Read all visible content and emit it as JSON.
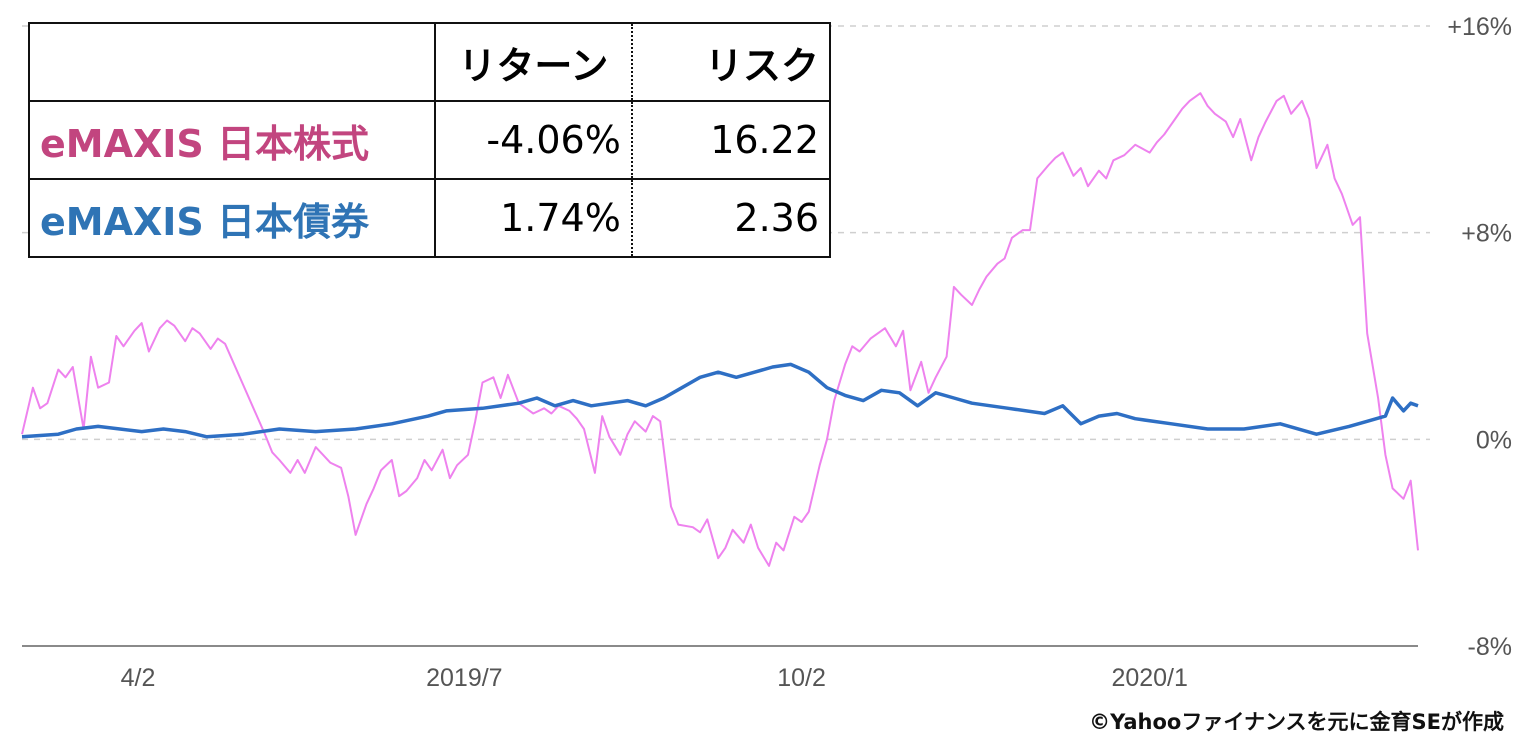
{
  "chart_data": {
    "type": "line",
    "title": "",
    "xlabel": "",
    "ylabel": "",
    "x_range": [
      "2019-03-01",
      "2020-03-20"
    ],
    "ylim": [
      -8,
      16
    ],
    "y_ticks": [
      "+16%",
      "+8%",
      "0%",
      "-8%"
    ],
    "y_tick_values": [
      16,
      8,
      0,
      -8
    ],
    "x_ticks": [
      {
        "label": "4/2",
        "date": "2019-04-02"
      },
      {
        "label": "2019/7",
        "date": "2019-07-01"
      },
      {
        "label": "10/2",
        "date": "2019-10-02"
      },
      {
        "label": "2020/1",
        "date": "2020-01-06"
      }
    ],
    "grid": "horizontal dashed",
    "series": [
      {
        "name": "eMAXIS 日本株式",
        "color": "#ee82ee",
        "points": [
          [
            "2019-03-01",
            0.2
          ],
          [
            "2019-03-04",
            2.0
          ],
          [
            "2019-03-06",
            1.2
          ],
          [
            "2019-03-08",
            1.4
          ],
          [
            "2019-03-11",
            2.7
          ],
          [
            "2019-03-13",
            2.4
          ],
          [
            "2019-03-15",
            2.8
          ],
          [
            "2019-03-18",
            0.4
          ],
          [
            "2019-03-20",
            3.2
          ],
          [
            "2019-03-22",
            2.0
          ],
          [
            "2019-03-25",
            2.2
          ],
          [
            "2019-03-27",
            4.0
          ],
          [
            "2019-03-29",
            3.6
          ],
          [
            "2019-04-01",
            4.2
          ],
          [
            "2019-04-03",
            4.5
          ],
          [
            "2019-04-05",
            3.4
          ],
          [
            "2019-04-08",
            4.3
          ],
          [
            "2019-04-10",
            4.6
          ],
          [
            "2019-04-12",
            4.4
          ],
          [
            "2019-04-15",
            3.8
          ],
          [
            "2019-04-17",
            4.3
          ],
          [
            "2019-04-19",
            4.1
          ],
          [
            "2019-04-22",
            3.5
          ],
          [
            "2019-04-24",
            3.9
          ],
          [
            "2019-04-26",
            3.7
          ],
          [
            "2019-05-07",
            0.2
          ],
          [
            "2019-05-09",
            -0.5
          ],
          [
            "2019-05-11",
            -0.8
          ],
          [
            "2019-05-14",
            -1.3
          ],
          [
            "2019-05-16",
            -0.8
          ],
          [
            "2019-05-18",
            -1.3
          ],
          [
            "2019-05-21",
            -0.3
          ],
          [
            "2019-05-23",
            -0.6
          ],
          [
            "2019-05-25",
            -0.9
          ],
          [
            "2019-05-28",
            -1.1
          ],
          [
            "2019-05-30",
            -2.2
          ],
          [
            "2019-06-01",
            -3.7
          ],
          [
            "2019-06-04",
            -2.5
          ],
          [
            "2019-06-06",
            -1.9
          ],
          [
            "2019-06-08",
            -1.2
          ],
          [
            "2019-06-11",
            -0.8
          ],
          [
            "2019-06-13",
            -2.2
          ],
          [
            "2019-06-15",
            -2.0
          ],
          [
            "2019-06-18",
            -1.5
          ],
          [
            "2019-06-20",
            -0.8
          ],
          [
            "2019-06-22",
            -1.2
          ],
          [
            "2019-06-25",
            -0.4
          ],
          [
            "2019-06-27",
            -1.5
          ],
          [
            "2019-06-29",
            -1.0
          ],
          [
            "2019-07-02",
            -0.6
          ],
          [
            "2019-07-04",
            0.7
          ],
          [
            "2019-07-06",
            2.2
          ],
          [
            "2019-07-09",
            2.4
          ],
          [
            "2019-07-11",
            1.6
          ],
          [
            "2019-07-13",
            2.5
          ],
          [
            "2019-07-16",
            1.4
          ],
          [
            "2019-07-18",
            1.2
          ],
          [
            "2019-07-20",
            1.0
          ],
          [
            "2019-07-23",
            1.2
          ],
          [
            "2019-07-25",
            1.0
          ],
          [
            "2019-07-27",
            1.3
          ],
          [
            "2019-07-30",
            1.1
          ],
          [
            "2019-08-01",
            0.8
          ],
          [
            "2019-08-03",
            0.4
          ],
          [
            "2019-08-06",
            -1.3
          ],
          [
            "2019-08-08",
            0.9
          ],
          [
            "2019-08-10",
            0.1
          ],
          [
            "2019-08-13",
            -0.6
          ],
          [
            "2019-08-15",
            0.2
          ],
          [
            "2019-08-17",
            0.7
          ],
          [
            "2019-08-20",
            0.3
          ],
          [
            "2019-08-22",
            0.9
          ],
          [
            "2019-08-24",
            0.7
          ],
          [
            "2019-08-27",
            -2.6
          ],
          [
            "2019-08-29",
            -3.3
          ],
          [
            "2019-09-02",
            -3.4
          ],
          [
            "2019-09-04",
            -3.6
          ],
          [
            "2019-09-06",
            -3.1
          ],
          [
            "2019-09-09",
            -4.6
          ],
          [
            "2019-09-11",
            -4.2
          ],
          [
            "2019-09-13",
            -3.5
          ],
          [
            "2019-09-16",
            -4.0
          ],
          [
            "2019-09-18",
            -3.3
          ],
          [
            "2019-09-20",
            -4.2
          ],
          [
            "2019-09-23",
            -4.9
          ],
          [
            "2019-09-25",
            -4.0
          ],
          [
            "2019-09-27",
            -4.3
          ],
          [
            "2019-09-30",
            -3.0
          ],
          [
            "2019-10-02",
            -3.2
          ],
          [
            "2019-10-04",
            -2.8
          ],
          [
            "2019-10-07",
            -1.0
          ],
          [
            "2019-10-09",
            0.0
          ],
          [
            "2019-10-11",
            1.5
          ],
          [
            "2019-10-14",
            2.9
          ],
          [
            "2019-10-16",
            3.6
          ],
          [
            "2019-10-18",
            3.4
          ],
          [
            "2019-10-21",
            3.9
          ],
          [
            "2019-10-23",
            4.1
          ],
          [
            "2019-10-25",
            4.3
          ],
          [
            "2019-10-28",
            3.6
          ],
          [
            "2019-10-30",
            4.2
          ],
          [
            "2019-11-01",
            1.9
          ],
          [
            "2019-11-04",
            3.0
          ],
          [
            "2019-11-06",
            1.8
          ],
          [
            "2019-11-08",
            2.4
          ],
          [
            "2019-11-11",
            3.2
          ],
          [
            "2019-11-13",
            5.9
          ],
          [
            "2019-11-15",
            5.6
          ],
          [
            "2019-11-18",
            5.2
          ],
          [
            "2019-11-20",
            5.8
          ],
          [
            "2019-11-22",
            6.3
          ],
          [
            "2019-11-25",
            6.8
          ],
          [
            "2019-11-27",
            7.0
          ],
          [
            "2019-11-29",
            7.8
          ],
          [
            "2019-12-02",
            8.1
          ],
          [
            "2019-12-04",
            8.1
          ],
          [
            "2019-12-06",
            10.1
          ],
          [
            "2019-12-09",
            10.6
          ],
          [
            "2019-12-11",
            10.9
          ],
          [
            "2019-12-13",
            11.1
          ],
          [
            "2019-12-16",
            10.2
          ],
          [
            "2019-12-18",
            10.5
          ],
          [
            "2019-12-20",
            9.8
          ],
          [
            "2019-12-23",
            10.4
          ],
          [
            "2019-12-25",
            10.1
          ],
          [
            "2019-12-27",
            10.8
          ],
          [
            "2019-12-30",
            11.0
          ],
          [
            "2020-01-02",
            11.4
          ],
          [
            "2020-01-06",
            11.1
          ],
          [
            "2020-01-08",
            11.5
          ],
          [
            "2020-01-10",
            11.8
          ],
          [
            "2020-01-13",
            12.4
          ],
          [
            "2020-01-15",
            12.8
          ],
          [
            "2020-01-17",
            13.1
          ],
          [
            "2020-01-20",
            13.4
          ],
          [
            "2020-01-22",
            12.9
          ],
          [
            "2020-01-24",
            12.6
          ],
          [
            "2020-01-27",
            12.3
          ],
          [
            "2020-01-29",
            11.7
          ],
          [
            "2020-01-31",
            12.4
          ],
          [
            "2020-02-03",
            10.8
          ],
          [
            "2020-02-05",
            11.7
          ],
          [
            "2020-02-07",
            12.3
          ],
          [
            "2020-02-10",
            13.1
          ],
          [
            "2020-02-12",
            13.3
          ],
          [
            "2020-02-14",
            12.6
          ],
          [
            "2020-02-17",
            13.1
          ],
          [
            "2020-02-19",
            12.4
          ],
          [
            "2020-02-21",
            10.5
          ],
          [
            "2020-02-24",
            11.4
          ],
          [
            "2020-02-26",
            10.1
          ],
          [
            "2020-02-28",
            9.5
          ],
          [
            "2020-03-02",
            8.3
          ],
          [
            "2020-03-04",
            8.6
          ],
          [
            "2020-03-06",
            4.1
          ],
          [
            "2020-03-09",
            1.6
          ],
          [
            "2020-03-11",
            -0.6
          ],
          [
            "2020-03-13",
            -1.9
          ],
          [
            "2020-03-16",
            -2.3
          ],
          [
            "2020-03-18",
            -1.6
          ],
          [
            "2020-03-20",
            -4.3
          ]
        ]
      },
      {
        "name": "eMAXIS 日本債券",
        "color": "#2e6fc4",
        "points": [
          [
            "2019-03-01",
            0.1
          ],
          [
            "2019-03-11",
            0.2
          ],
          [
            "2019-03-16",
            0.4
          ],
          [
            "2019-03-22",
            0.5
          ],
          [
            "2019-03-28",
            0.4
          ],
          [
            "2019-04-03",
            0.3
          ],
          [
            "2019-04-09",
            0.4
          ],
          [
            "2019-04-15",
            0.3
          ],
          [
            "2019-04-21",
            0.1
          ],
          [
            "2019-05-01",
            0.2
          ],
          [
            "2019-05-11",
            0.4
          ],
          [
            "2019-05-21",
            0.3
          ],
          [
            "2019-06-01",
            0.4
          ],
          [
            "2019-06-11",
            0.6
          ],
          [
            "2019-06-21",
            0.9
          ],
          [
            "2019-06-26",
            1.1
          ],
          [
            "2019-07-06",
            1.2
          ],
          [
            "2019-07-16",
            1.4
          ],
          [
            "2019-07-21",
            1.6
          ],
          [
            "2019-07-26",
            1.3
          ],
          [
            "2019-07-31",
            1.5
          ],
          [
            "2019-08-05",
            1.3
          ],
          [
            "2019-08-10",
            1.4
          ],
          [
            "2019-08-15",
            1.5
          ],
          [
            "2019-08-20",
            1.3
          ],
          [
            "2019-08-25",
            1.6
          ],
          [
            "2019-08-30",
            2.0
          ],
          [
            "2019-09-04",
            2.4
          ],
          [
            "2019-09-09",
            2.6
          ],
          [
            "2019-09-14",
            2.4
          ],
          [
            "2019-09-19",
            2.6
          ],
          [
            "2019-09-24",
            2.8
          ],
          [
            "2019-09-29",
            2.9
          ],
          [
            "2019-10-04",
            2.6
          ],
          [
            "2019-10-09",
            2.0
          ],
          [
            "2019-10-14",
            1.7
          ],
          [
            "2019-10-19",
            1.5
          ],
          [
            "2019-10-24",
            1.9
          ],
          [
            "2019-10-29",
            1.8
          ],
          [
            "2019-11-03",
            1.3
          ],
          [
            "2019-11-08",
            1.8
          ],
          [
            "2019-11-13",
            1.6
          ],
          [
            "2019-11-18",
            1.4
          ],
          [
            "2019-11-28",
            1.2
          ],
          [
            "2019-12-08",
            1.0
          ],
          [
            "2019-12-13",
            1.3
          ],
          [
            "2019-12-18",
            0.6
          ],
          [
            "2019-12-23",
            0.9
          ],
          [
            "2019-12-28",
            1.0
          ],
          [
            "2020-01-02",
            0.8
          ],
          [
            "2020-01-12",
            0.6
          ],
          [
            "2020-01-22",
            0.4
          ],
          [
            "2020-02-01",
            0.4
          ],
          [
            "2020-02-11",
            0.6
          ],
          [
            "2020-02-21",
            0.2
          ],
          [
            "2020-03-01",
            0.5
          ],
          [
            "2020-03-06",
            0.7
          ],
          [
            "2020-03-11",
            0.9
          ],
          [
            "2020-03-13",
            1.6
          ],
          [
            "2020-03-16",
            1.1
          ],
          [
            "2020-03-18",
            1.4
          ],
          [
            "2020-03-20",
            1.3
          ]
        ]
      }
    ]
  },
  "summary_table": {
    "headers": [
      "",
      "リターン",
      "リスク"
    ],
    "rows": [
      {
        "fund": "eMAXIS 日本株式",
        "return": "-4.06%",
        "risk": "16.22",
        "color": "#c2457f"
      },
      {
        "fund": "eMAXIS 日本債券",
        "return": "1.74%",
        "risk": "2.36",
        "color": "#2f74b5"
      }
    ]
  },
  "credit": "©Yahooファイナンスを元に金育SEが作成"
}
